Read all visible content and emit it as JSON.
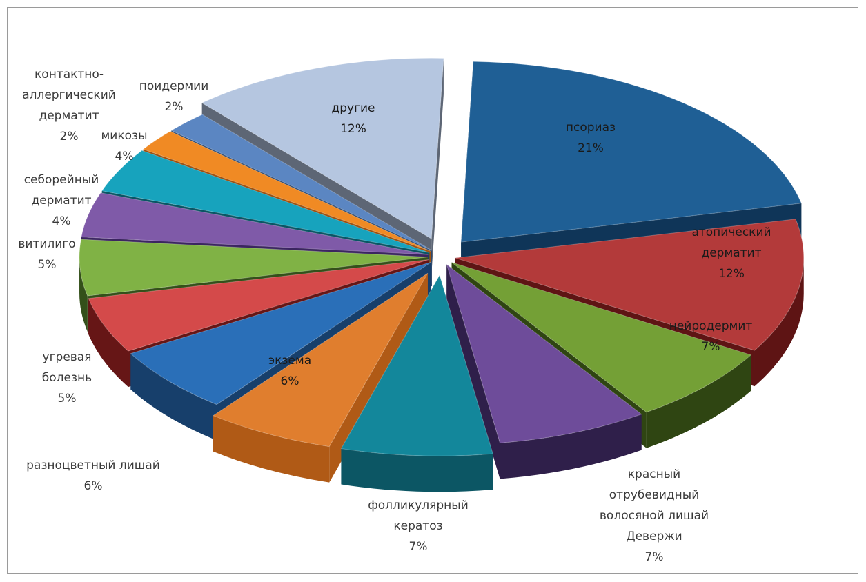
{
  "chart_data": {
    "type": "pie",
    "style": "3d-exploded",
    "slices": [
      {
        "lines": [
          "псориаз"
        ],
        "value": 21,
        "pct_label": "21%",
        "color": "#1f5f95",
        "dark": "#0f3558"
      },
      {
        "lines": [
          "атопический",
          "дерматит"
        ],
        "value": 12,
        "pct_label": "12%",
        "color": "#b33a3a",
        "dark": "#5e1414"
      },
      {
        "lines": [
          "нейродермит"
        ],
        "value": 7,
        "pct_label": "7%",
        "color": "#74a036",
        "dark": "#2f4512"
      },
      {
        "lines": [
          "красный",
          "отрубевидный",
          "волосяной лишай",
          "Девержи"
        ],
        "value": 7,
        "pct_label": "7%",
        "color": "#6e4c9a",
        "dark": "#2f1f4a"
      },
      {
        "lines": [
          "фолликулярный",
          "кератоз"
        ],
        "value": 7,
        "pct_label": "7%",
        "color": "#13879b",
        "dark": "#0c5664"
      },
      {
        "lines": [
          "экзема"
        ],
        "value": 6,
        "pct_label": "6%",
        "color": "#e07e2e",
        "dark": "#b05a16"
      },
      {
        "lines": [
          "разноцветный лишай"
        ],
        "value": 6,
        "pct_label": "6%",
        "color": "#2a6fb8",
        "dark": "#173f6b"
      },
      {
        "lines": [
          "угревая",
          "болезнь"
        ],
        "value": 5,
        "pct_label": "5%",
        "color": "#d44a4a",
        "dark": "#661616"
      },
      {
        "lines": [
          "витилиго"
        ],
        "value": 5,
        "pct_label": "5%",
        "color": "#80b245",
        "dark": "#34501a"
      },
      {
        "lines": [
          "себорейный",
          "дерматит"
        ],
        "value": 4,
        "pct_label": "4%",
        "color": "#7f5aa8",
        "dark": "#3b2560"
      },
      {
        "lines": [
          "микозы"
        ],
        "value": 4,
        "pct_label": "4%",
        "color": "#17a3bd",
        "dark": "#0a5564"
      },
      {
        "lines": [
          "контактно-",
          "аллергический",
          "дерматит"
        ],
        "value": 2,
        "pct_label": "2%",
        "color": "#f08a24",
        "dark": "#9c5110"
      },
      {
        "lines": [
          "поидермии"
        ],
        "value": 2,
        "pct_label": "2%",
        "color": "#5b86c2",
        "dark": "#2e4a70"
      },
      {
        "lines": [
          "другие"
        ],
        "value": 12,
        "pct_label": "12%",
        "color": "#b5c6e0",
        "dark": "#5d6675"
      }
    ]
  }
}
